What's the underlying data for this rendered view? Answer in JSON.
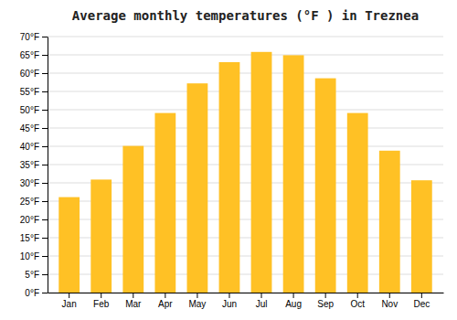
{
  "chart_data": {
    "type": "bar",
    "title": "Average monthly temperatures (°F ) in Treznea",
    "categories": [
      "Jan",
      "Feb",
      "Mar",
      "Apr",
      "May",
      "Jun",
      "Jul",
      "Aug",
      "Sep",
      "Oct",
      "Nov",
      "Dec"
    ],
    "values": [
      26.1,
      30.9,
      40.1,
      49.1,
      57.2,
      63.0,
      65.8,
      64.9,
      58.6,
      49.1,
      38.8,
      30.7
    ],
    "color": "#FFC125",
    "ylim": [
      0,
      70
    ],
    "yticks": [
      {
        "value": 0,
        "label": "0°F"
      },
      {
        "value": 5,
        "label": "5°F"
      },
      {
        "value": 10,
        "label": "10°F"
      },
      {
        "value": 15,
        "label": "15°F"
      },
      {
        "value": 20,
        "label": "20°F"
      },
      {
        "value": 25,
        "label": "25°F"
      },
      {
        "value": 30,
        "label": "30°F"
      },
      {
        "value": 35,
        "label": "35°F"
      },
      {
        "value": 40,
        "label": "40°F"
      },
      {
        "value": 45,
        "label": "45°F"
      },
      {
        "value": 50,
        "label": "50°F"
      },
      {
        "value": 55,
        "label": "55°F"
      },
      {
        "value": 60,
        "label": "60°F"
      },
      {
        "value": 65,
        "label": "65°F"
      },
      {
        "value": 70,
        "label": "70°F"
      }
    ],
    "grid": true
  }
}
